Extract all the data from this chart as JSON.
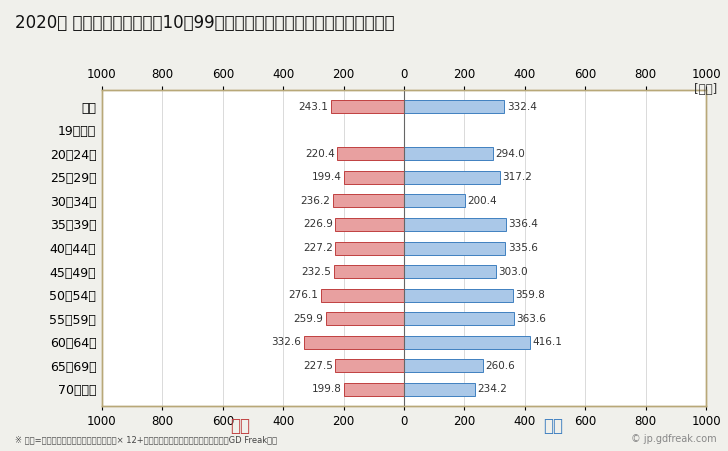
{
  "title": "2020年 民間企業（従業者数10～99人）フルタイム労働者の男女別平均年収",
  "ylabel_unit": "[万円]",
  "footnote": "※ 年収=「きまって支給する現金給与額」× 12+「年間賞与その他特別給与額」としてGD Freak推計",
  "watermark": "© jp.gdfreak.com",
  "categories": [
    "全体",
    "19歳以下",
    "20～24歳",
    "25～29歳",
    "30～34歳",
    "35～39歳",
    "40～44歳",
    "45～49歳",
    "50～54歳",
    "55～59歳",
    "60～64歳",
    "65～69歳",
    "70歳以上"
  ],
  "female_values": [
    243.1,
    0,
    220.4,
    199.4,
    236.2,
    226.9,
    227.2,
    232.5,
    276.1,
    259.9,
    332.6,
    227.5,
    199.8
  ],
  "male_values": [
    332.4,
    0,
    294.0,
    317.2,
    200.4,
    336.4,
    335.6,
    303.0,
    359.8,
    363.6,
    416.1,
    260.6,
    234.2
  ],
  "female_color": "#e8a0a0",
  "female_edge_color": "#c04040",
  "male_color": "#aac8e8",
  "male_edge_color": "#4080c0",
  "female_label": "女性",
  "male_label": "男性",
  "female_label_color": "#c04040",
  "male_label_color": "#4080c0",
  "xlim": [
    -1000,
    1000
  ],
  "xticks": [
    -1000,
    -800,
    -600,
    -400,
    -200,
    0,
    200,
    400,
    600,
    800,
    1000
  ],
  "xtick_labels": [
    "1000",
    "800",
    "600",
    "400",
    "200",
    "0",
    "200",
    "400",
    "600",
    "800",
    "1000"
  ],
  "background_color": "#f0f0eb",
  "plot_bg_color": "#ffffff",
  "title_fontsize": 12,
  "tick_fontsize": 8.5,
  "label_fontsize": 9,
  "bar_height": 0.55,
  "value_fontsize": 7.5,
  "grid_color": "#cccccc",
  "spine_color": "#b8a878"
}
